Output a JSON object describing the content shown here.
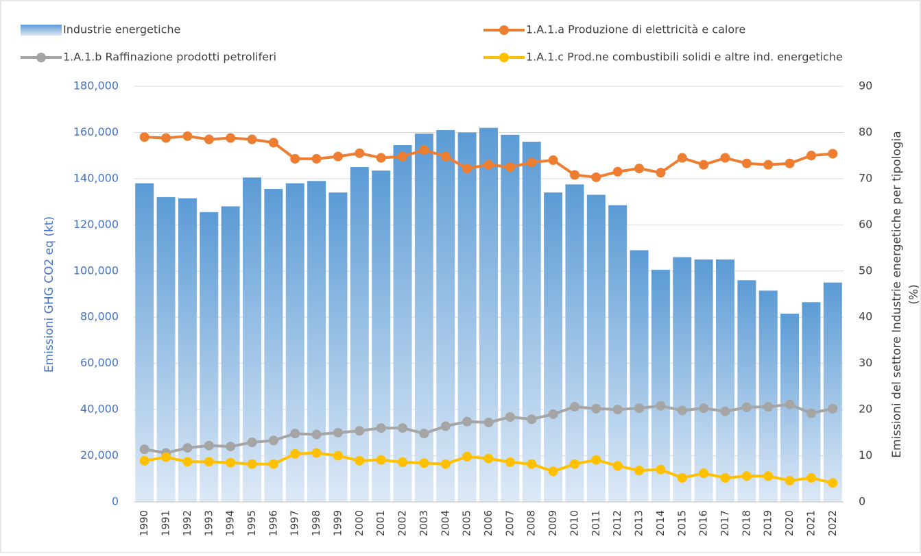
{
  "chart_data": {
    "type": "bar-line",
    "categories": [
      "1990",
      "1991",
      "1992",
      "1993",
      "1994",
      "1995",
      "1996",
      "1997",
      "1998",
      "1999",
      "2000",
      "2001",
      "2002",
      "2003",
      "2004",
      "2005",
      "2006",
      "2007",
      "2008",
      "2009",
      "2010",
      "2011",
      "2012",
      "2013",
      "2014",
      "2015",
      "2016",
      "2017",
      "2018",
      "2019",
      "2020",
      "2021",
      "2022"
    ],
    "y_label": "Emissioni GHG CO2 eq (kt)",
    "y2_label": [
      "Emissioni del settore Industrie energetiche per tipologia",
      "(%)"
    ],
    "ylim": [
      0,
      180000
    ],
    "yticks": [
      0,
      {
        "value": 20000,
        "label": "20,000"
      },
      {
        "value": 40000,
        "label": "40,000"
      },
      {
        "value": 60000,
        "label": "60,000"
      },
      {
        "value": 80000,
        "label": "80,000"
      },
      {
        "value": 100000,
        "label": "100,000"
      },
      {
        "value": 120000,
        "label": "120,000"
      },
      {
        "value": 140000,
        "label": "140,000"
      },
      {
        "value": 160000,
        "label": "160,000"
      },
      {
        "value": 180000,
        "label": "180,000"
      }
    ],
    "y2lim": [
      0,
      90
    ],
    "y2ticks": [
      0,
      10,
      20,
      30,
      40,
      50,
      60,
      70,
      80,
      90
    ],
    "grid": true,
    "legend": "top",
    "series": [
      {
        "name": "Industrie energetiche",
        "type": "bar",
        "color": "#5b9bd5",
        "values": [
          138000,
          132000,
          131500,
          125500,
          128000,
          140500,
          135500,
          138000,
          139000,
          134000,
          145000,
          143500,
          154500,
          159500,
          161000,
          160000,
          162000,
          159000,
          156000,
          134000,
          137500,
          133000,
          128500,
          109000,
          100500,
          106000,
          105000,
          105000,
          96000,
          91500,
          81500,
          86500,
          95000
        ]
      },
      {
        "name": "1.A.1.a  Produzione di elettricità e calore",
        "type": "line",
        "axis": "y2",
        "color": "#ed7d31",
        "values": [
          79.0,
          78.8,
          79.2,
          78.5,
          78.8,
          78.5,
          77.8,
          74.3,
          74.3,
          74.8,
          75.5,
          74.5,
          74.8,
          76.2,
          74.8,
          72.2,
          73.0,
          72.5,
          73.5,
          74.0,
          70.8,
          70.3,
          71.5,
          72.2,
          71.3,
          74.5,
          73.0,
          74.5,
          73.3,
          73.0,
          73.3,
          75.0,
          75.4
        ]
      },
      {
        "name": "1.A.1.b  Raffinazione prodotti petroliferi",
        "type": "line",
        "axis": "y2",
        "color": "#a5a5a5",
        "values": [
          11.4,
          10.6,
          11.7,
          12.2,
          12.0,
          12.9,
          13.3,
          14.8,
          14.6,
          15.0,
          15.4,
          16.0,
          16.0,
          14.8,
          16.4,
          17.4,
          17.2,
          18.4,
          17.9,
          19.0,
          20.6,
          20.2,
          20.0,
          20.3,
          20.8,
          19.8,
          20.3,
          19.6,
          20.5,
          20.6,
          21.1,
          19.2,
          20.2
        ]
      },
      {
        "name": "1.A.1.c  Prod.ne combustibili solidi e altre ind. energetiche",
        "type": "line",
        "axis": "y2",
        "color": "#ffc000",
        "values": [
          8.9,
          9.7,
          8.7,
          8.7,
          8.5,
          8.2,
          8.2,
          10.4,
          10.6,
          10.0,
          8.9,
          9.1,
          8.6,
          8.4,
          8.2,
          9.8,
          9.4,
          8.6,
          8.2,
          6.6,
          8.2,
          9.1,
          7.8,
          6.8,
          7.0,
          5.2,
          6.2,
          5.2,
          5.6,
          5.6,
          4.6,
          5.2,
          4.1
        ]
      }
    ]
  }
}
